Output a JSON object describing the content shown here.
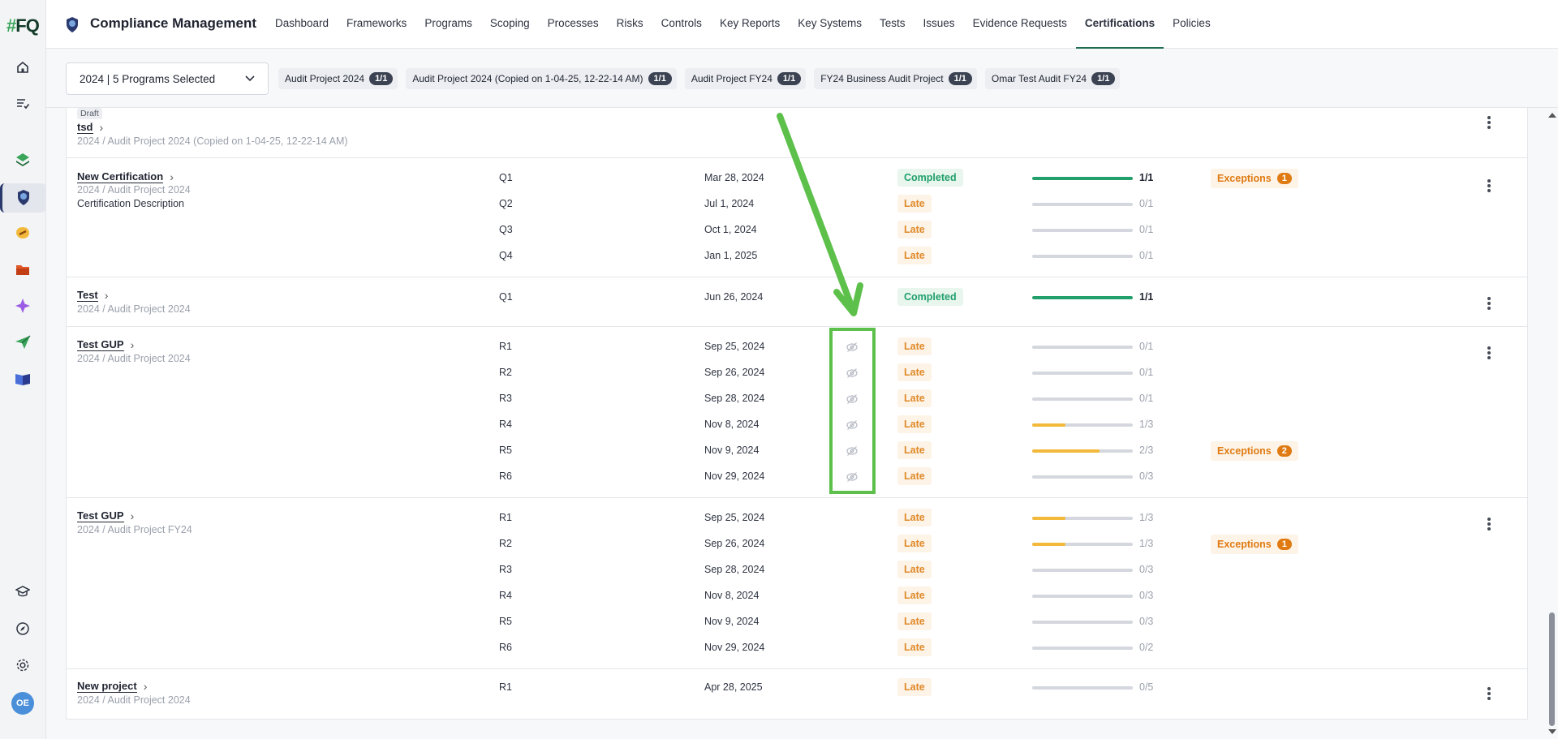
{
  "app": {
    "logo_prefix": "#",
    "logo_text": "FQ",
    "title": "Compliance Management",
    "avatar_initials": "OE"
  },
  "nav": [
    {
      "label": "Dashboard",
      "active": false
    },
    {
      "label": "Frameworks",
      "active": false
    },
    {
      "label": "Programs",
      "active": false
    },
    {
      "label": "Scoping",
      "active": false
    },
    {
      "label": "Processes",
      "active": false
    },
    {
      "label": "Risks",
      "active": false
    },
    {
      "label": "Controls",
      "active": false
    },
    {
      "label": "Key Reports",
      "active": false
    },
    {
      "label": "Key Systems",
      "active": false
    },
    {
      "label": "Tests",
      "active": false
    },
    {
      "label": "Issues",
      "active": false
    },
    {
      "label": "Evidence Requests",
      "active": false
    },
    {
      "label": "Certifications",
      "active": true
    },
    {
      "label": "Policies",
      "active": false
    }
  ],
  "filter": {
    "selector": "2024 | 5 Programs Selected",
    "chips": [
      {
        "label": "Audit Project 2024",
        "badge": "1/1"
      },
      {
        "label": "Audit Project 2024 (Copied on 1-04-25, 12-22-14 AM)",
        "badge": "1/1"
      },
      {
        "label": "Audit Project FY24",
        "badge": "1/1"
      },
      {
        "label": "FY24 Business Audit Project",
        "badge": "1/1"
      },
      {
        "label": "Omar Test Audit FY24",
        "badge": "1/1"
      }
    ]
  },
  "groups": {
    "tsd": {
      "draft": "Draft",
      "title": "tsd",
      "path": "2024 / Audit Project 2024 (Copied on 1-04-25, 12-22-14 AM)"
    },
    "newcert": {
      "title": "New Certification",
      "path": "2024 / Audit Project 2024",
      "description": "Certification Description"
    },
    "test": {
      "title": "Test",
      "path": "2024 / Audit Project 2024"
    },
    "gup1": {
      "title": "Test GUP",
      "path": "2024 / Audit Project 2024"
    },
    "gup2": {
      "title": "Test GUP",
      "path": "2024 / Audit Project FY24"
    },
    "newproject": {
      "title": "New project",
      "path": "2024 / Audit Project 2024"
    }
  },
  "exceptions_label": "Exceptions",
  "rows": [
    {
      "period": "Q1",
      "date": "Mar 28, 2024",
      "status": "Completed",
      "progress": 1.0,
      "count": "1/1",
      "exceptions": "1"
    },
    {
      "period": "Q2",
      "date": "Jul 1, 2024",
      "status": "Late",
      "progress": 0,
      "count": "0/1"
    },
    {
      "period": "Q3",
      "date": "Oct 1, 2024",
      "status": "Late",
      "progress": 0,
      "count": "0/1"
    },
    {
      "period": "Q4",
      "date": "Jan 1, 2025",
      "status": "Late",
      "progress": 0,
      "count": "0/1"
    },
    {
      "period": "Q1",
      "date": "Jun 26, 2024",
      "status": "Completed",
      "progress": 1.0,
      "count": "1/1"
    },
    {
      "period": "R1",
      "date": "Sep 25, 2024",
      "status": "Late",
      "progress": 0,
      "count": "0/1",
      "hidden_icon": true
    },
    {
      "period": "R2",
      "date": "Sep 26, 2024",
      "status": "Late",
      "progress": 0,
      "count": "0/1",
      "hidden_icon": true
    },
    {
      "period": "R3",
      "date": "Sep 28, 2024",
      "status": "Late",
      "progress": 0,
      "count": "0/1",
      "hidden_icon": true
    },
    {
      "period": "R4",
      "date": "Nov 8, 2024",
      "status": "Late",
      "progress": 0.333,
      "count": "1/3",
      "hidden_icon": true
    },
    {
      "period": "R5",
      "date": "Nov 9, 2024",
      "status": "Late",
      "progress": 0.667,
      "count": "2/3",
      "hidden_icon": true,
      "exceptions": "2"
    },
    {
      "period": "R6",
      "date": "Nov 29, 2024",
      "status": "Late",
      "progress": 0,
      "count": "0/3",
      "hidden_icon": true
    },
    {
      "period": "R1",
      "date": "Sep 25, 2024",
      "status": "Late",
      "progress": 0.333,
      "count": "1/3"
    },
    {
      "period": "R2",
      "date": "Sep 26, 2024",
      "status": "Late",
      "progress": 0.333,
      "count": "1/3",
      "exceptions": "1"
    },
    {
      "period": "R3",
      "date": "Sep 28, 2024",
      "status": "Late",
      "progress": 0,
      "count": "0/3"
    },
    {
      "period": "R4",
      "date": "Nov 8, 2024",
      "status": "Late",
      "progress": 0,
      "count": "0/3"
    },
    {
      "period": "R5",
      "date": "Nov 9, 2024",
      "status": "Late",
      "progress": 0,
      "count": "0/3"
    },
    {
      "period": "R6",
      "date": "Nov 29, 2024",
      "status": "Late",
      "progress": 0,
      "count": "0/2"
    },
    {
      "period": "R1",
      "date": "Apr 28, 2025",
      "status": "Late",
      "progress": 0,
      "count": "0/5"
    }
  ],
  "colors": {
    "accent": "#1d6d4e",
    "completed": "#22a06b",
    "late": "#e08a2a",
    "exception": "#e07a12",
    "partial_progress": "#f2b93b",
    "annotation": "#5cc04a"
  }
}
